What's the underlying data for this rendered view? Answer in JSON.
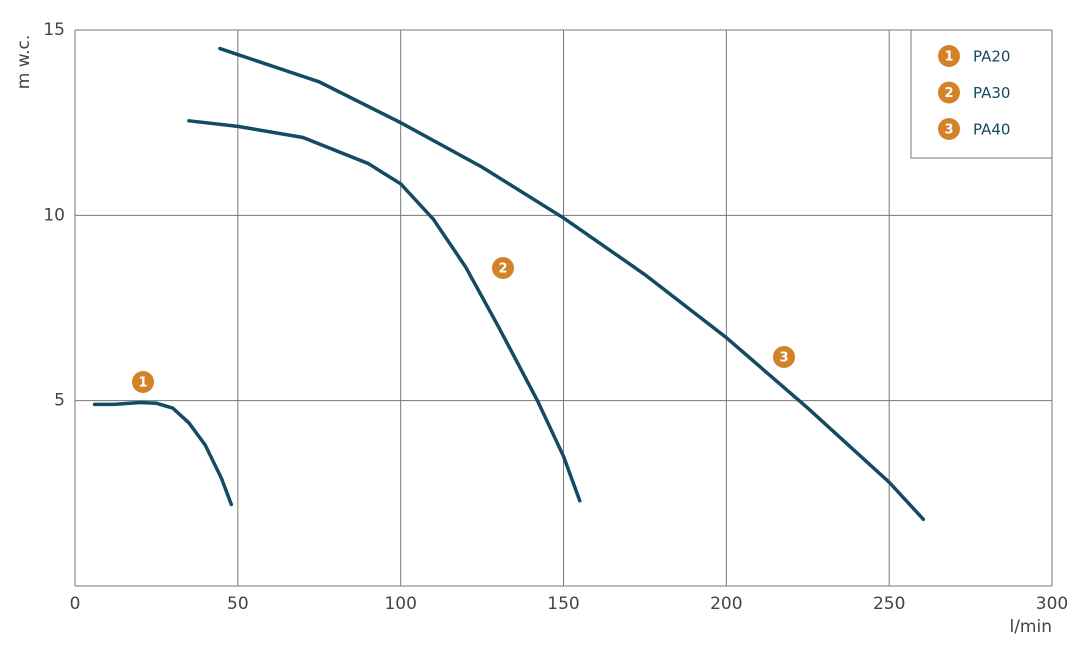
{
  "chart_data": {
    "type": "line",
    "x_label": "l/min",
    "y_label": "m w.c.",
    "xlim": [
      0,
      300
    ],
    "xticks": [
      0,
      50,
      100,
      150,
      200,
      250,
      300
    ],
    "ylim": [
      0,
      15
    ],
    "yticks": [
      5,
      10,
      15
    ],
    "grid": true,
    "legend": "upper right",
    "badge_color": "#d4822a",
    "series": [
      {
        "name": "PA20",
        "badge": "1",
        "color": "#134b63",
        "x": [
          6,
          12,
          20,
          25,
          30,
          35,
          40,
          45,
          48
        ],
        "values": [
          4.9,
          4.9,
          4.95,
          4.93,
          4.8,
          4.4,
          3.8,
          2.9,
          2.2
        ]
      },
      {
        "name": "PA30",
        "badge": "2",
        "color": "#134b63",
        "x": [
          35,
          50,
          70,
          90,
          100,
          110,
          120,
          130,
          142,
          150,
          155
        ],
        "values": [
          12.55,
          12.4,
          12.1,
          11.4,
          10.85,
          9.9,
          8.6,
          7.0,
          5.0,
          3.5,
          2.3
        ]
      },
      {
        "name": "PA40",
        "badge": "3",
        "color": "#134b63",
        "x": [
          44.5,
          75,
          100,
          125,
          150,
          175,
          200,
          225,
          250,
          260.5
        ],
        "values": [
          14.5,
          13.6,
          12.5,
          11.3,
          9.93,
          8.4,
          6.7,
          4.8,
          2.8,
          1.8
        ]
      }
    ]
  }
}
